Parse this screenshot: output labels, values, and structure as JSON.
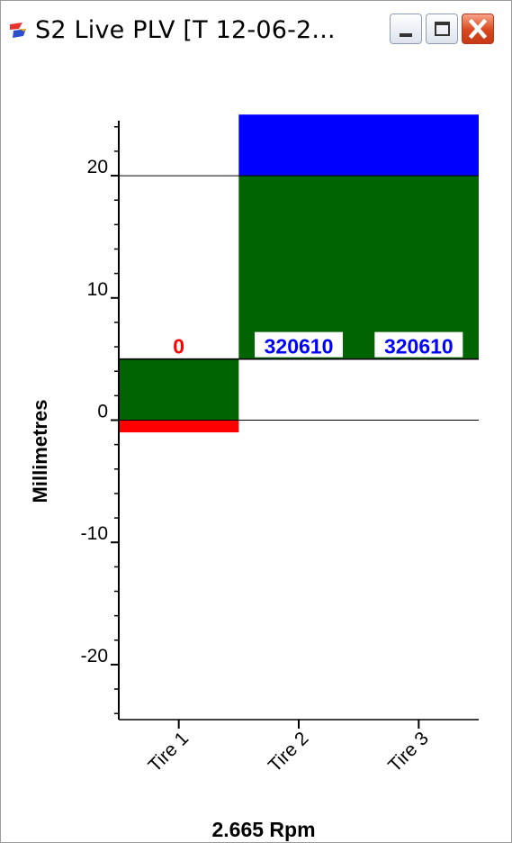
{
  "window": {
    "title": "S2 Live PLV [T 12-06-2...",
    "icon": "app-icon",
    "controls": [
      "minimize-icon",
      "maximize-icon",
      "close-icon"
    ]
  },
  "chart_data": {
    "type": "bar",
    "categories": [
      "Tire 1",
      "Tire 2",
      "Tire 3"
    ],
    "ylabel": "Millimetres",
    "xlabel": "2.665 Rpm",
    "ylim": [
      -24.5,
      24.5
    ],
    "yticks": [
      20,
      10,
      0,
      -10,
      -20
    ],
    "reference_lines": [
      20,
      0
    ],
    "bands": [
      {
        "x_from": 0,
        "x_to": 1,
        "y_from": -1,
        "y_to": 0,
        "color": "#ff0000"
      },
      {
        "x_from": 0,
        "x_to": 1,
        "y_from": 0,
        "y_to": 5,
        "color": "#006400"
      },
      {
        "x_from": 1,
        "x_to": 3,
        "y_from": 5,
        "y_to": 20,
        "color": "#006400"
      },
      {
        "x_from": 1,
        "x_to": 3,
        "y_from": 20,
        "y_to": 25,
        "color": "#0000ff"
      }
    ],
    "step_line": [
      [
        0,
        5
      ],
      [
        1,
        5
      ],
      [
        1,
        5
      ],
      [
        3,
        5
      ]
    ],
    "data_labels": [
      {
        "category": "Tire 1",
        "text": "0",
        "y": 5,
        "color": "#ff0000",
        "boxed": false
      },
      {
        "category": "Tire 2",
        "text": "320610",
        "y": 5,
        "color": "#0000ff",
        "boxed": true
      },
      {
        "category": "Tire 3",
        "text": "320610",
        "y": 5,
        "color": "#0000ff",
        "boxed": true
      }
    ]
  }
}
